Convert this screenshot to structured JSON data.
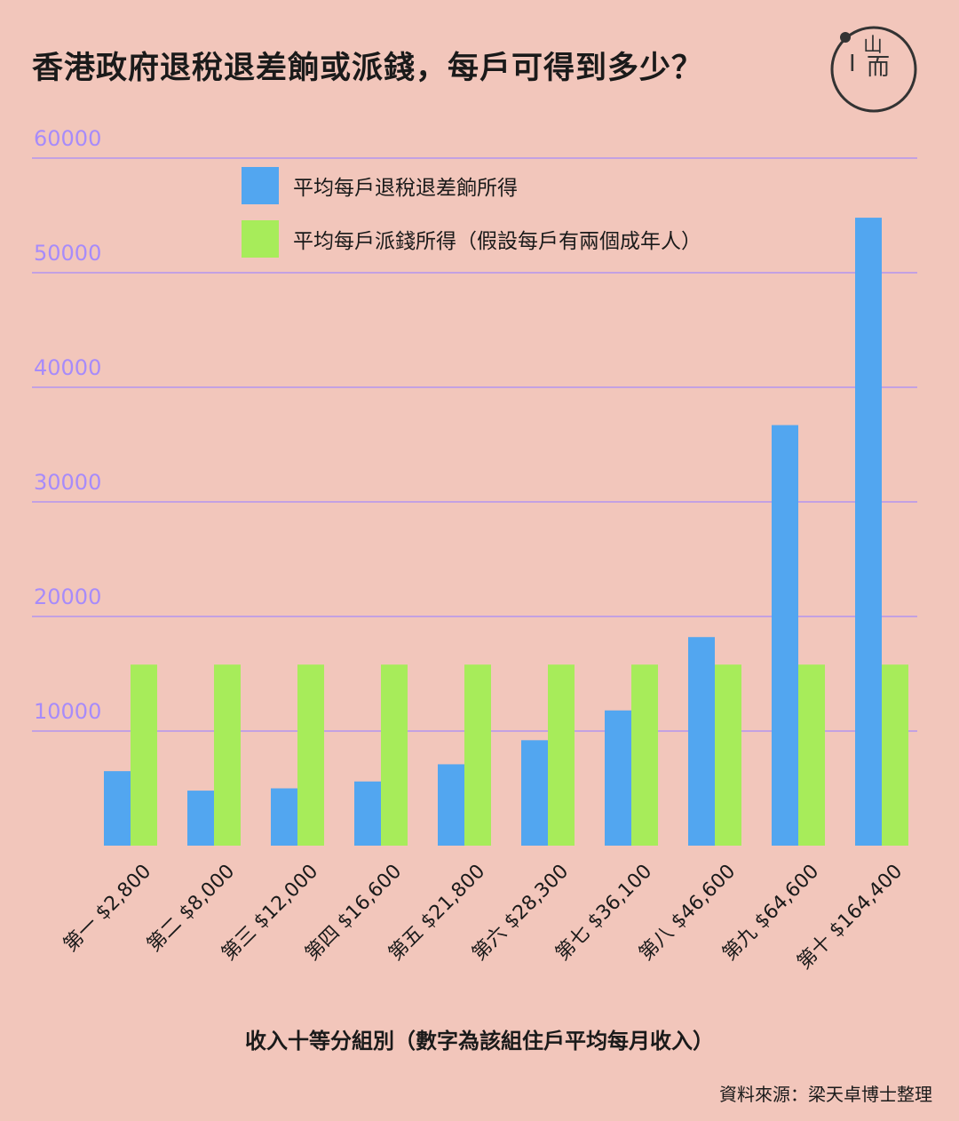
{
  "title": "香港政府退稅退差餉或派錢，每戶可得到多少？",
  "logo_text": {
    "left": "I",
    "top": "山",
    "right": "而"
  },
  "source": "資料來源：梁天卓博士整理",
  "chart_data": {
    "type": "bar",
    "title": "香港政府退稅退差餉或派錢，每戶可得到多少？",
    "xlabel": "收入十等分組別（數字為該組住戶平均每月收入）",
    "ylabel": "",
    "ylim": [
      0,
      60000
    ],
    "yticks": [
      10000,
      20000,
      30000,
      40000,
      50000,
      60000
    ],
    "grid": true,
    "legend_position": "top",
    "categories": [
      "第一 $2,800",
      "第二 $8,000",
      "第三 $12,000",
      "第四 $16,600",
      "第五 $21,800",
      "第六 $28,300",
      "第七 $36,100",
      "第八 $46,600",
      "第九 $64,600",
      "第十 $164,400"
    ],
    "series": [
      {
        "name": "平均每戶退稅退差餉所得",
        "color": "#52a6f0",
        "values": [
          6500,
          4800,
          5000,
          5600,
          7100,
          9200,
          11800,
          18200,
          36700,
          54800
        ]
      },
      {
        "name": "平均每戶派錢所得（假設每戶有兩個成年人）",
        "color": "#a7ec5a",
        "values": [
          15800,
          15800,
          15800,
          15800,
          15800,
          15800,
          15800,
          15800,
          15800,
          15800
        ]
      }
    ]
  },
  "colors": {
    "background": "#f2c6bb",
    "gridline": "#a78bfa",
    "tick_text": "#a78bfa"
  }
}
